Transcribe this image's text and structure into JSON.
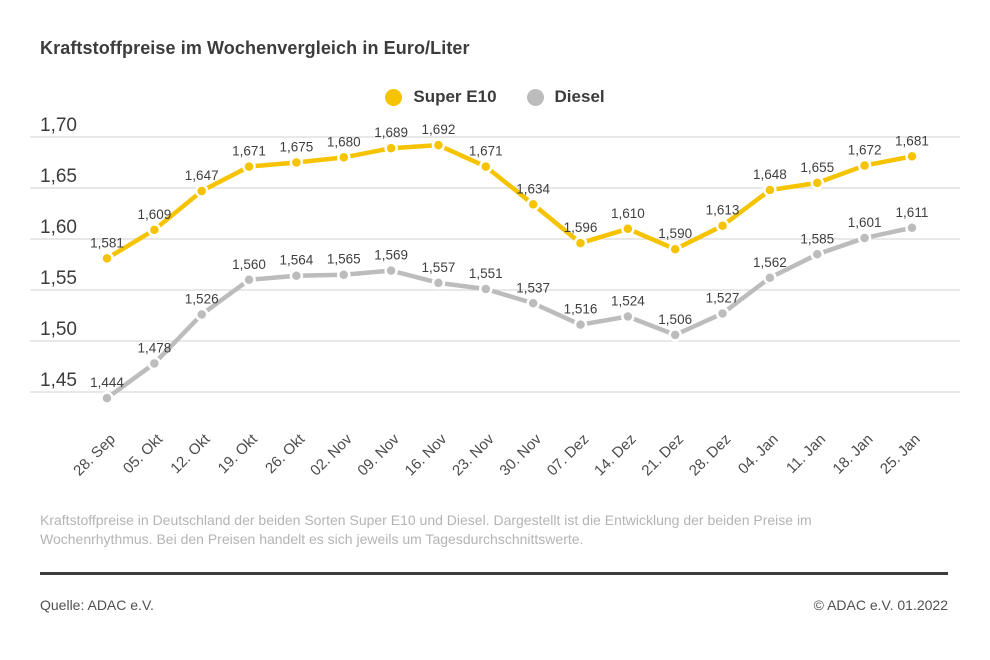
{
  "title": "Kraftstoffpreise im Wochenvergleich in Euro/Liter",
  "legend": [
    {
      "label": "Super E10",
      "color": "#f6c300"
    },
    {
      "label": "Diesel",
      "color": "#bcbcbc"
    }
  ],
  "chart_data": {
    "type": "line",
    "title": "Kraftstoffpreise im Wochenvergleich in Euro/Liter",
    "x": [
      "28. Sep",
      "05. Okt",
      "12. Okt",
      "19. Okt",
      "26. Okt",
      "02. Nov",
      "09. Nov",
      "16. Nov",
      "23. Nov",
      "30. Nov",
      "07. Dez",
      "14. Dez",
      "21. Dez",
      "28. Dez",
      "04. Jan",
      "11. Jan",
      "18. Jan",
      "25. Jan"
    ],
    "series": [
      {
        "name": "Super E10",
        "color": "#f6c300",
        "values": [
          1.581,
          1.609,
          1.647,
          1.671,
          1.675,
          1.68,
          1.689,
          1.692,
          1.671,
          1.634,
          1.596,
          1.61,
          1.59,
          1.613,
          1.648,
          1.655,
          1.672,
          1.681
        ]
      },
      {
        "name": "Diesel",
        "color": "#bcbcbc",
        "values": [
          1.444,
          1.478,
          1.526,
          1.56,
          1.564,
          1.565,
          1.569,
          1.557,
          1.551,
          1.537,
          1.516,
          1.524,
          1.506,
          1.527,
          1.562,
          1.585,
          1.601,
          1.611
        ]
      }
    ],
    "xlabel": "",
    "ylabel": "Euro/Liter",
    "ylim": [
      1.42,
      1.72
    ],
    "yticks": [
      1.7,
      1.65,
      1.6,
      1.55,
      1.5,
      1.45
    ],
    "grid": true,
    "legend_position": "top-center",
    "value_labels": true,
    "decimal_separator": ","
  },
  "colors": {
    "grid": "#d9d9d9",
    "tick_text": "#3c3c3c",
    "value_label_text": "#3f3f3f",
    "x_label_text": "#4b4b4b"
  },
  "footnote": "Kraftstoffpreise in Deutschland der beiden Sorten Super E10 und Diesel. Dargestellt ist die Entwicklung der beiden Preise im Wochenrhythmus. Bei den Preisen handelt es sich jeweils um Tagesdurchschnittswerte.",
  "source": "Quelle: ADAC e.V.",
  "copyright": "© ADAC e.V. 01.2022"
}
